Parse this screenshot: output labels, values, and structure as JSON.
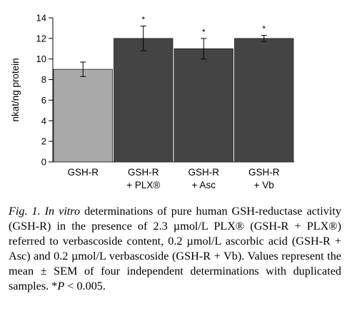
{
  "chart_data": {
    "type": "bar",
    "ylabel": "nkat/ng protein",
    "ylim": [
      0,
      14
    ],
    "yticks": [
      0,
      2,
      4,
      6,
      8,
      10,
      12,
      14
    ],
    "categories": [
      [
        "GSH-R"
      ],
      [
        "GSH-R",
        "+ PLX®"
      ],
      [
        "GSH-R",
        "+ Asc"
      ],
      [
        "GSH-R",
        "+ Vb"
      ]
    ],
    "values": [
      9.0,
      12.0,
      11.0,
      12.0
    ],
    "errors": [
      0.7,
      1.2,
      1.0,
      0.3
    ],
    "significant": [
      "",
      "*",
      "*",
      "*"
    ],
    "bar_colors": [
      "#a9a9a9",
      "#444444",
      "#444444",
      "#444444"
    ]
  },
  "caption": {
    "fig": "Fig. 1.",
    "in_vitro": "In vitro",
    "text": " determinations of pure human GSH-reductase activity (GSH-R) in the presence of 2.3 µmol/L PLX® (GSH-R + PLX®) referred to verbascoside content, 0.2 µmol/L ascorbic acid (GSH-R + Asc) and 0.2 µmol/L verbascoside (GSH-R + Vb). Values represent the mean ± SEM of four independent determinations with duplicated samples.",
    "p_star": "*",
    "p_italic": "P",
    "p_rest": " < 0.005."
  }
}
